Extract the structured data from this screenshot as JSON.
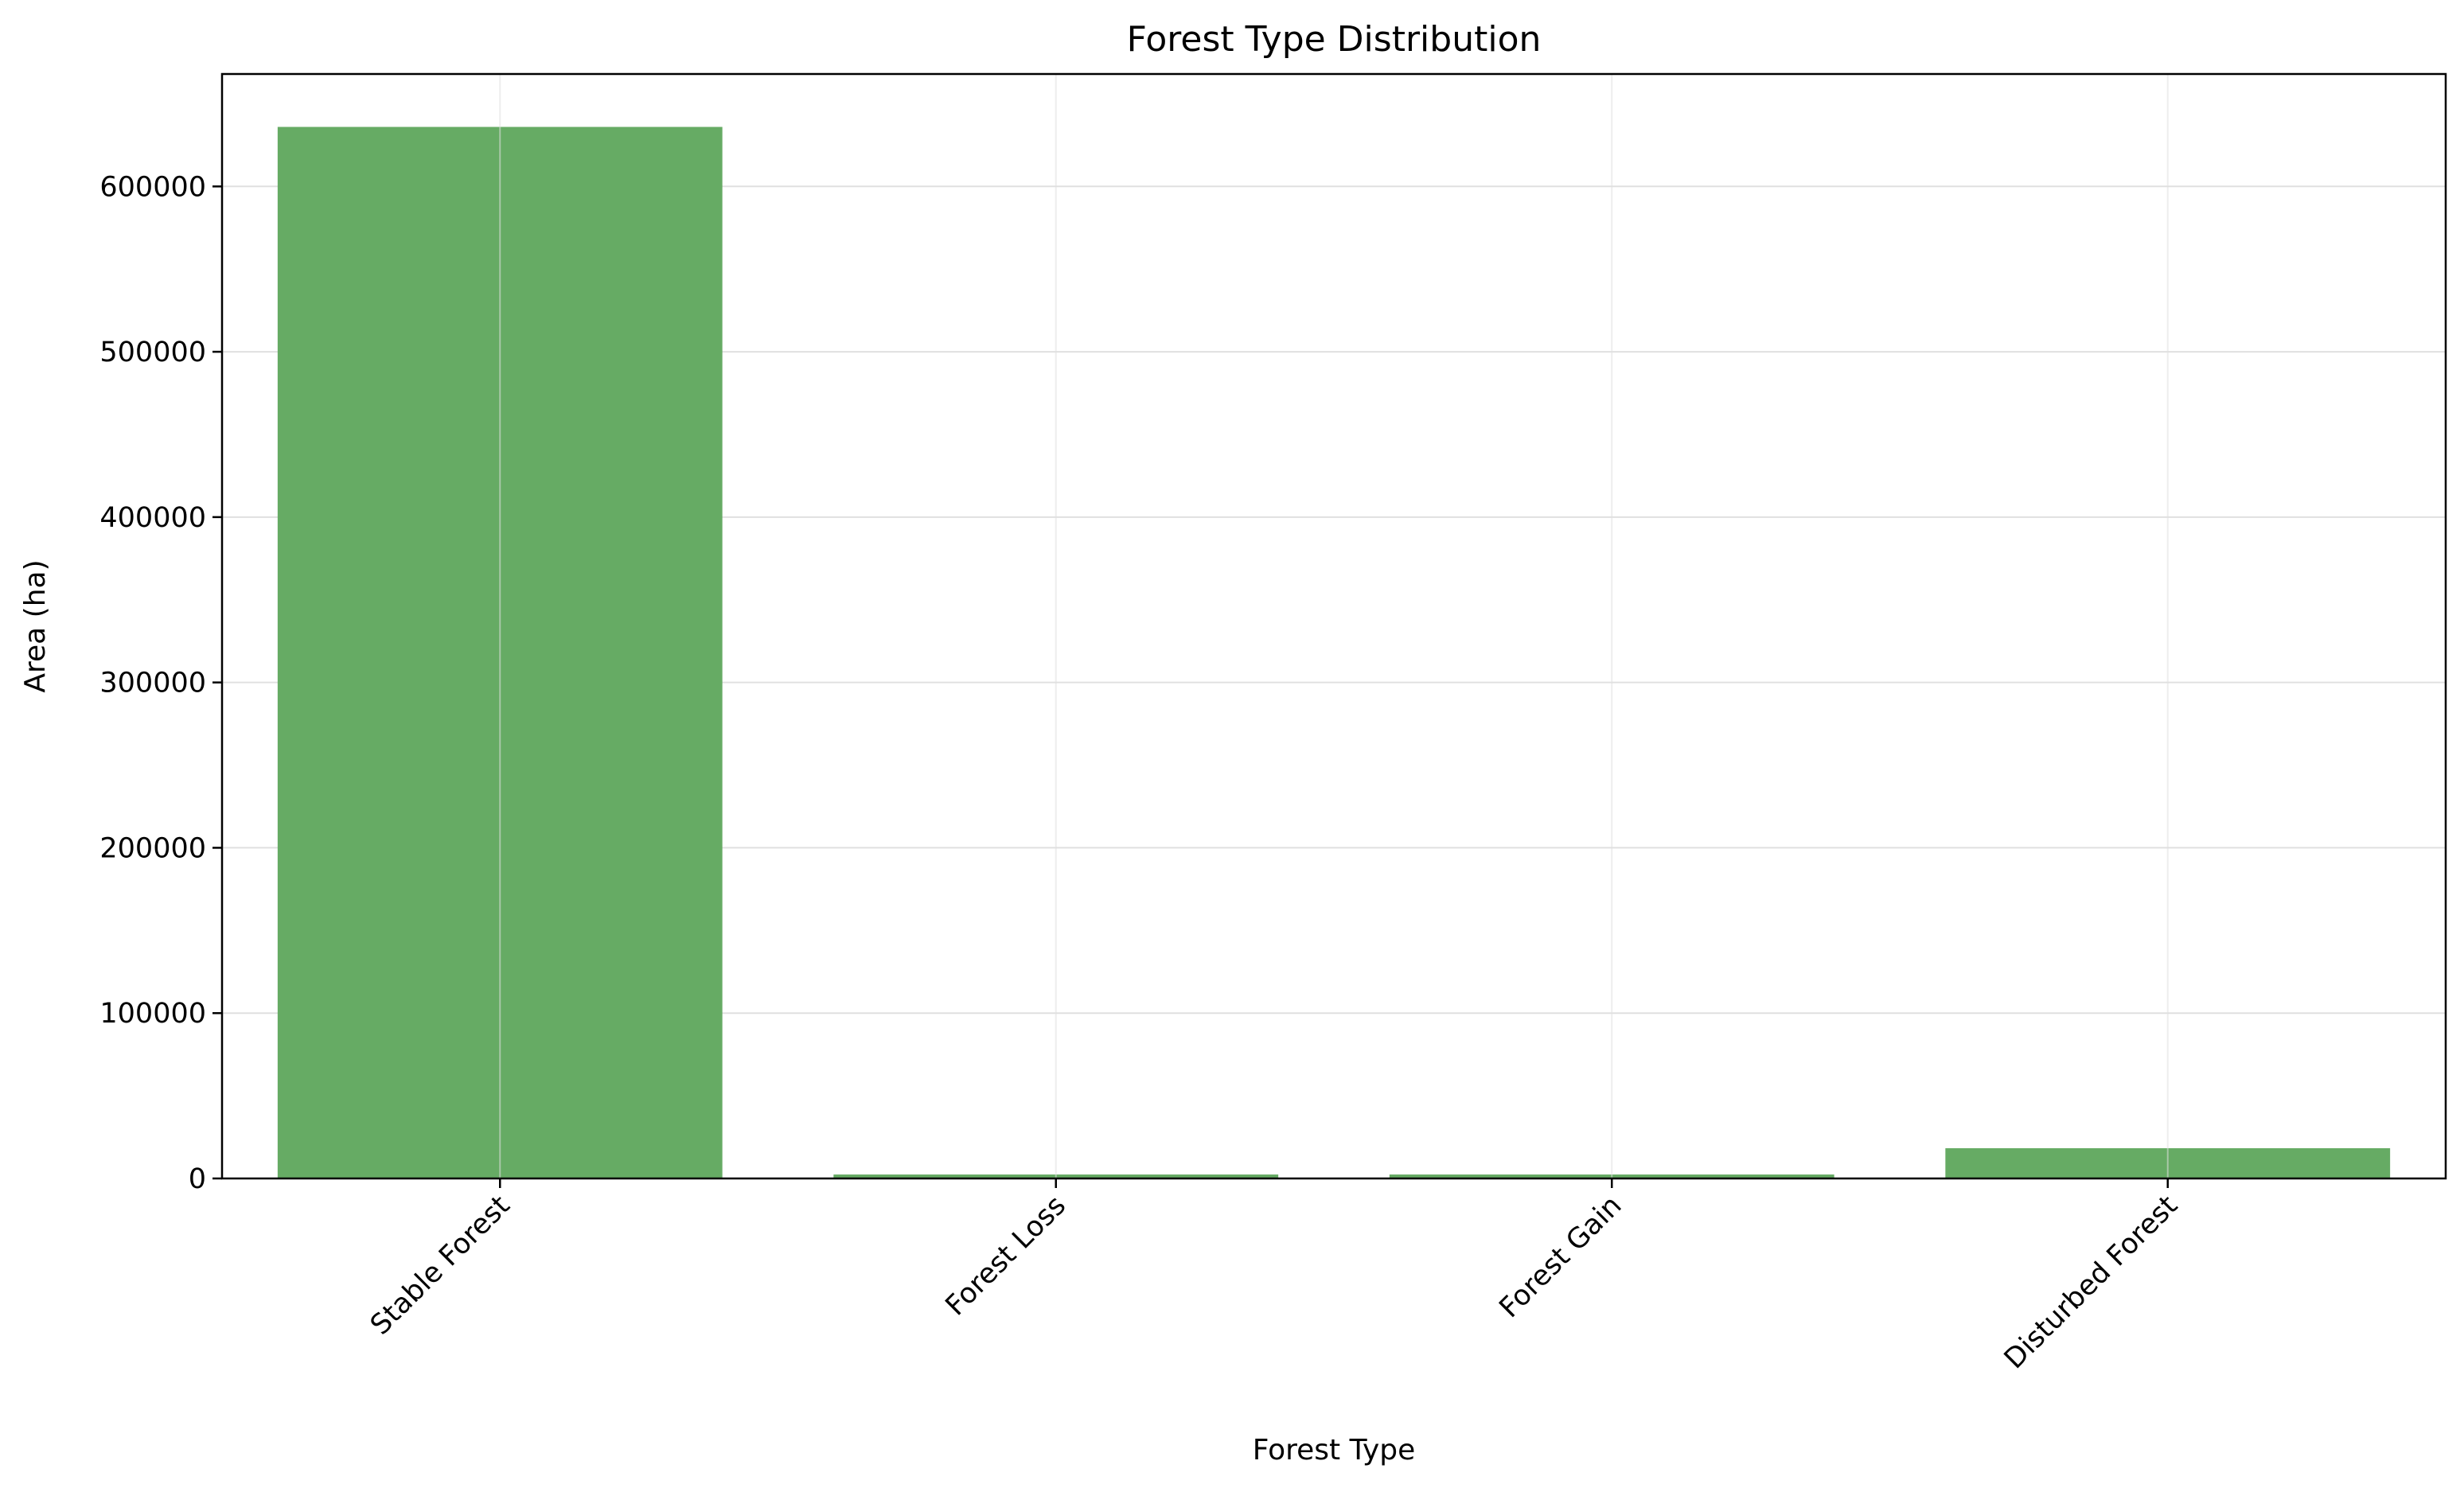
{
  "chart_data": {
    "type": "bar",
    "title": "Forest Type Distribution",
    "xlabel": "Forest Type",
    "ylabel": "Area (ha)",
    "categories": [
      "Stable Forest",
      "Forest Loss",
      "Forest Gain",
      "Disturbed Forest"
    ],
    "values": [
      636000,
      2400,
      2400,
      18300
    ],
    "ylim": [
      0,
      668000
    ],
    "yticks": [
      0,
      100000,
      200000,
      300000,
      400000,
      500000,
      600000
    ],
    "ytick_labels": [
      "0",
      "100000",
      "200000",
      "300000",
      "400000",
      "500000",
      "600000"
    ],
    "grid": true,
    "bar_color": "#66ab64",
    "grid_color": "#e0e0e0"
  }
}
